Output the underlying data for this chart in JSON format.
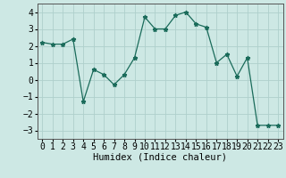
{
  "x": [
    0,
    1,
    2,
    3,
    4,
    5,
    6,
    7,
    8,
    9,
    10,
    11,
    12,
    13,
    14,
    15,
    16,
    17,
    18,
    19,
    20,
    21,
    22,
    23
  ],
  "y": [
    2.2,
    2.1,
    2.1,
    2.4,
    -1.3,
    0.6,
    0.3,
    -0.3,
    0.3,
    1.3,
    3.7,
    3.0,
    3.0,
    3.8,
    4.0,
    3.3,
    3.1,
    1.0,
    1.5,
    0.2,
    1.3,
    -2.7,
    -2.7,
    -2.7
  ],
  "line_color": "#1a6b5a",
  "marker": "*",
  "marker_size": 3.5,
  "bg_color": "#cde8e4",
  "grid_color": "#aed0cc",
  "xlabel": "Humidex (Indice chaleur)",
  "xlim": [
    -0.5,
    23.5
  ],
  "ylim": [
    -3.5,
    4.5
  ],
  "yticks": [
    -3,
    -2,
    -1,
    0,
    1,
    2,
    3,
    4
  ],
  "xticks": [
    0,
    1,
    2,
    3,
    4,
    5,
    6,
    7,
    8,
    9,
    10,
    11,
    12,
    13,
    14,
    15,
    16,
    17,
    18,
    19,
    20,
    21,
    22,
    23
  ],
  "xlabel_fontsize": 7.5,
  "tick_fontsize": 7,
  "ytick_fontsize": 7
}
